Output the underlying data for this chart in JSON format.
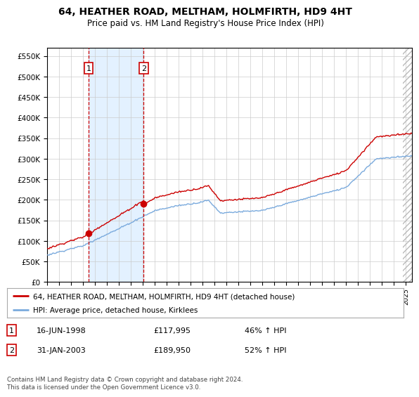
{
  "title": "64, HEATHER ROAD, MELTHAM, HOLMFIRTH, HD9 4HT",
  "subtitle": "Price paid vs. HM Land Registry's House Price Index (HPI)",
  "sale1_t": 1998.46,
  "sale1_price": 117995,
  "sale2_t": 2003.08,
  "sale2_price": 189950,
  "legend_line1": "64, HEATHER ROAD, MELTHAM, HOLMFIRTH, HD9 4HT (detached house)",
  "legend_line2": "HPI: Average price, detached house, Kirklees",
  "footer": "Contains HM Land Registry data © Crown copyright and database right 2024.\nThis data is licensed under the Open Government Licence v3.0.",
  "hpi_color": "#7aaadd",
  "price_color": "#cc0000",
  "vline_color": "#cc0000",
  "shade_color": "#ddeeff",
  "ylim_min": 0,
  "ylim_max": 570000,
  "xlim_min": 1995.0,
  "xlim_max": 2025.5
}
